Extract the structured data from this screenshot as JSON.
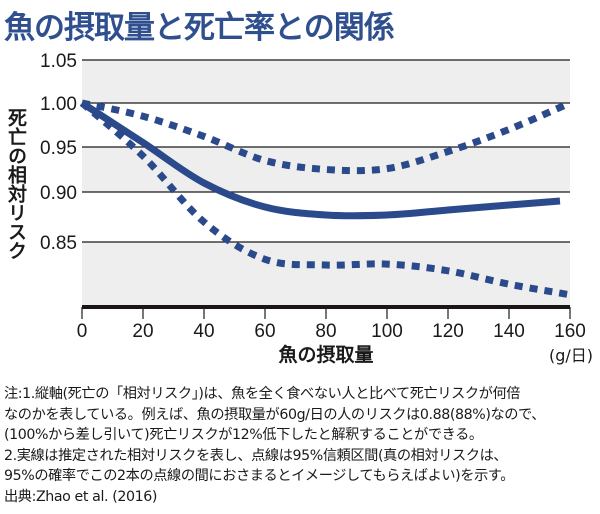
{
  "title": "魚の摂取量と死亡率との関係",
  "colors": {
    "title": "#2f4f8f",
    "line": "#2b4a8c",
    "band": "#eeeeee",
    "axis": "#1a1616"
  },
  "chart_data": {
    "type": "line",
    "title": "魚の摂取量と死亡率との関係",
    "xlabel": "魚の摂取量",
    "xunit": "(g/日)",
    "ylabel": "死亡の相対リスク",
    "xlim": [
      0,
      160
    ],
    "ylim": [
      0.783,
      1.05
    ],
    "xticks": [
      "0",
      "20",
      "40",
      "60",
      "80",
      "100",
      "120",
      "140",
      "160"
    ],
    "yticks": [
      "1.05",
      "1.00",
      "0.95",
      "0.90",
      "0.85"
    ],
    "grid": true,
    "legend": "none",
    "x": [
      0,
      20,
      40,
      60,
      80,
      100,
      120,
      140,
      160
    ],
    "series": [
      {
        "name": "推定された相対リスク",
        "style": "solid",
        "values": [
          1.0,
          0.955,
          0.91,
          0.885,
          0.877,
          0.877,
          0.882,
          0.887,
          0.891
        ]
      },
      {
        "name": "95%信頼区間 上限",
        "style": "dotted",
        "values": [
          1.0,
          0.985,
          0.962,
          0.935,
          0.925,
          0.926,
          0.945,
          0.97,
          1.0
        ]
      },
      {
        "name": "95%信頼区間 下限",
        "style": "dotted",
        "values": [
          1.0,
          0.94,
          0.87,
          0.832,
          0.826,
          0.827,
          0.82,
          0.806,
          0.795
        ]
      }
    ]
  },
  "notes": [
    "注:1.縦軸(死亡の「相対リスク」)は、魚を全く食べない人と比べて死亡リスクが何倍",
    "なのかを表している。例えば、魚の摂取量が60g/日の人のリスクは0.88(88%)なので、",
    "(100%から差し引いて)死亡リスクが12%低下したと解釈することができる。",
    "2.実線は推定された相対リスクを表し、点線は95%信頼区間(真の相対リスクは、",
    "95%の確率でこの2本の点線の間におさまるとイメージしてもらえばよい)を示す。",
    "出典:Zhao et al. (2016)"
  ]
}
